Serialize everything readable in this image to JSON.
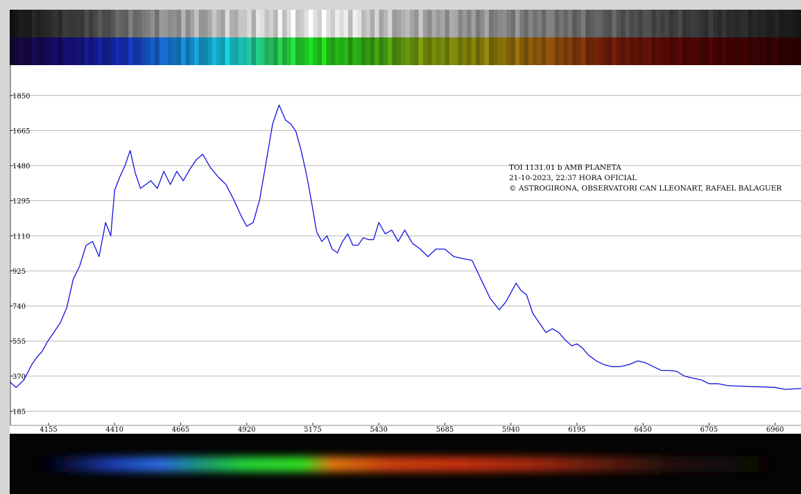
{
  "chart_data": {
    "type": "line",
    "title": "",
    "xlabel": "",
    "ylabel": "",
    "xlim": [
      4005,
      7060
    ],
    "ylim": [
      110,
      2010
    ],
    "xticks": [
      "4155",
      "4410",
      "4665",
      "4920",
      "5175",
      "5430",
      "5685",
      "5940",
      "6195",
      "6450",
      "6705",
      "6960"
    ],
    "yticks": [
      "1850",
      "1665",
      "1480",
      "1295",
      "1110",
      "925",
      "740",
      "555",
      "370",
      "185"
    ],
    "grid": true,
    "line_color": "#1010e0",
    "annotation": [
      "TOI 1131.01 b AMB PLANETA",
      "21-10-2023, 22:37 HORA OFICIAL",
      "© ASTROGIRONA, OBSERVATORI CAN LLEONART, RAFAEL BALAGUER"
    ],
    "series": [
      {
        "x": [
          4005,
          4030,
          4060,
          4090,
          4110,
          4130,
          4150,
          4175,
          4200,
          4225,
          4250,
          4275,
          4300,
          4325,
          4350,
          4375,
          4395,
          4410,
          4430,
          4450,
          4470,
          4490,
          4510,
          4530,
          4550,
          4575,
          4600,
          4625,
          4650,
          4675,
          4700,
          4725,
          4750,
          4780,
          4810,
          4840,
          4870,
          4900,
          4920,
          4945,
          4970,
          4995,
          5020,
          5045,
          5070,
          5090,
          5110,
          5130,
          5150,
          5165,
          5175,
          5190,
          5210,
          5230,
          5250,
          5270,
          5290,
          5310,
          5330,
          5350,
          5370,
          5390,
          5410,
          5430,
          5455,
          5480,
          5505,
          5530,
          5560,
          5590,
          5620,
          5650,
          5685,
          5720,
          5755,
          5790,
          5825,
          5860,
          5895,
          5920,
          5940,
          5960,
          5980,
          6000,
          6025,
          6050,
          6075,
          6100,
          6125,
          6150,
          6175,
          6195,
          6215,
          6240,
          6270,
          6300,
          6330,
          6360,
          6395,
          6430,
          6460,
          6490,
          6520,
          6550,
          6580,
          6610,
          6640,
          6675,
          6705,
          6740,
          6775,
          6810,
          6850,
          6890,
          6930,
          6960,
          7000,
          7060
        ],
        "values": [
          340,
          310,
          350,
          430,
          470,
          500,
          550,
          600,
          650,
          730,
          880,
          950,
          1060,
          1080,
          1000,
          1180,
          1110,
          1350,
          1420,
          1480,
          1560,
          1440,
          1360,
          1380,
          1400,
          1360,
          1450,
          1380,
          1450,
          1400,
          1460,
          1510,
          1540,
          1470,
          1420,
          1380,
          1300,
          1210,
          1160,
          1180,
          1300,
          1500,
          1700,
          1800,
          1720,
          1700,
          1660,
          1560,
          1440,
          1330,
          1250,
          1130,
          1080,
          1110,
          1040,
          1020,
          1080,
          1120,
          1060,
          1060,
          1100,
          1090,
          1090,
          1180,
          1120,
          1140,
          1080,
          1140,
          1070,
          1040,
          1000,
          1040,
          1040,
          1000,
          990,
          980,
          880,
          780,
          720,
          760,
          810,
          860,
          820,
          800,
          700,
          650,
          600,
          620,
          600,
          560,
          530,
          540,
          520,
          480,
          450,
          430,
          420,
          420,
          430,
          450,
          440,
          420,
          400,
          400,
          395,
          370,
          360,
          350,
          330,
          330,
          320,
          318,
          316,
          314,
          312,
          310,
          300,
          305
        ]
      }
    ]
  }
}
